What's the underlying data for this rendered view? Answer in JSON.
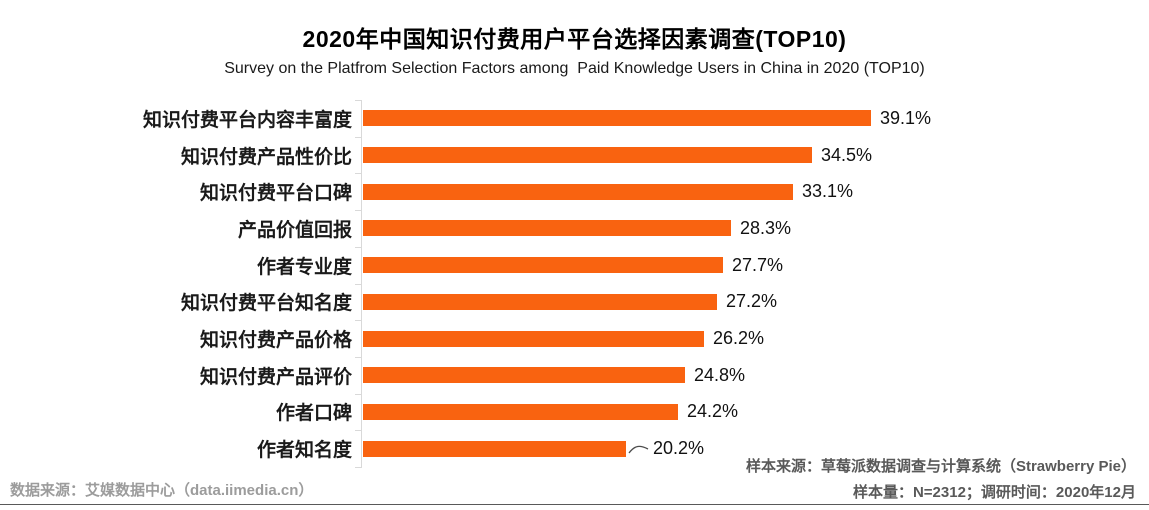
{
  "header": {
    "title": "2020年中国知识付费用户平台选择因素调查(TOP10)",
    "subtitle": "Survey on the Platfrom Selection Factors among  Paid Knowledge Users in China in 2020 (TOP10)"
  },
  "chart_data": {
    "type": "bar",
    "orientation": "horizontal",
    "title": "2020年中国知识付费用户平台选择因素调查(TOP10)",
    "subtitle": "Survey on the Platfrom Selection Factors among  Paid Knowledge Users in China in 2020 (TOP10)",
    "categories": [
      "知识付费平台内容丰富度",
      "知识付费产品性价比",
      "知识付费平台口碑",
      "产品价值回报",
      "作者专业度",
      "知识付费平台知名度",
      "知识付费产品价格",
      "知识付费产品评价",
      "作者口碑",
      "作者知名度"
    ],
    "values": [
      39.1,
      34.5,
      33.1,
      28.3,
      27.7,
      27.2,
      26.2,
      24.8,
      24.2,
      20.2
    ],
    "value_suffix": "%",
    "xlabel": "",
    "ylabel": "",
    "xlim": [
      0,
      40
    ],
    "grid": false,
    "legend": "none",
    "bar_color": "#f96310",
    "last_bar_leader_line": true
  },
  "footer": {
    "left_note": "数据来源：艾媒数据中心（data.iimedia.cn）",
    "right_note_line1": "样本来源：草莓派数据调查与计算系统（Strawberry Pie）",
    "right_note_line2": "样本量：N=2312；调研时间：2020年12月"
  },
  "colors": {
    "bar": "#f96310",
    "axis": "#d9d9d9",
    "divider": "#595959",
    "footer_left_text": "#9c9c9c",
    "footer_right_text": "#595959",
    "title_text": "#000000",
    "value_text": "#111111"
  }
}
